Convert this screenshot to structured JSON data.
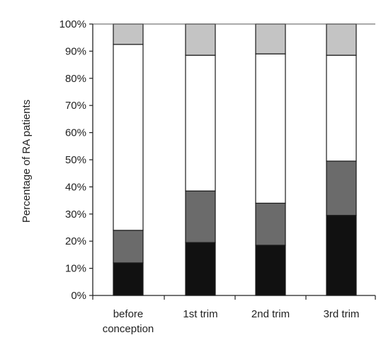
{
  "chart_data": {
    "type": "bar",
    "stacked": true,
    "title": "",
    "xlabel": "",
    "ylabel": "Percentage of RA patients",
    "ylim": [
      0,
      100
    ],
    "yticks": [
      "0%",
      "10%",
      "20%",
      "30%",
      "40%",
      "50%",
      "60%",
      "70%",
      "80%",
      "90%",
      "100%"
    ],
    "categories": [
      [
        "before",
        "conception"
      ],
      [
        "1st trim"
      ],
      [
        "2nd trim"
      ],
      [
        "3rd trim"
      ]
    ],
    "series": [
      {
        "values": [
          12,
          19.5,
          18.5,
          29.5
        ],
        "color": "#111111"
      },
      {
        "values": [
          12,
          19,
          15.5,
          20
        ],
        "color": "#6b6b6b"
      },
      {
        "values": [
          68.5,
          50,
          55,
          39
        ],
        "color": "#ffffff"
      },
      {
        "values": [
          7.5,
          11.5,
          11,
          11.5
        ],
        "color": "#c4c4c4"
      }
    ],
    "grid": false,
    "legend": "none"
  }
}
